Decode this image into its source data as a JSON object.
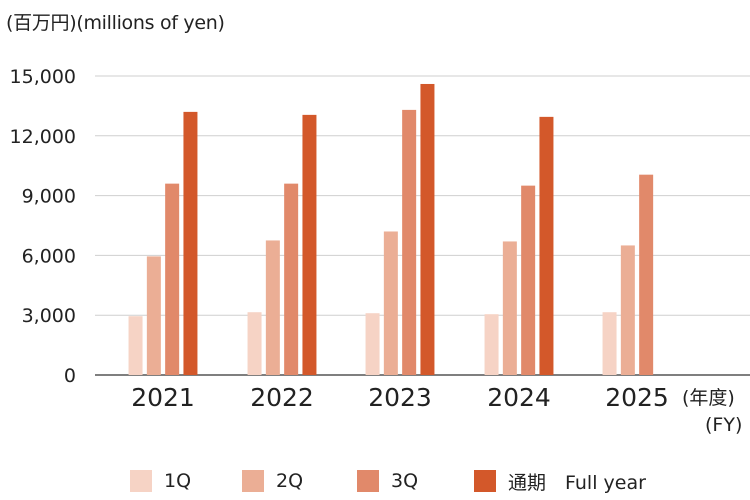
{
  "unit_label": "(百万円)(millions of yen)",
  "fy_label_jp": "(年度)",
  "fy_label_en": "(FY)",
  "legend": [
    {
      "label": "1Q",
      "color": "#f6d3c5"
    },
    {
      "label": "2Q",
      "color": "#ebae95"
    },
    {
      "label": "3Q",
      "color": "#e1896a"
    },
    {
      "label": "通期　Full year",
      "color": "#d3582a"
    }
  ],
  "chart_data": {
    "type": "bar",
    "categories": [
      "2021",
      "2022",
      "2023",
      "2024",
      "2025"
    ],
    "series": [
      {
        "name": "1Q",
        "values": [
          2950,
          3150,
          3100,
          3050,
          3150
        ]
      },
      {
        "name": "2Q",
        "values": [
          5950,
          6750,
          7200,
          6700,
          6500
        ]
      },
      {
        "name": "3Q",
        "values": [
          9600,
          9600,
          13300,
          9500,
          10050
        ]
      },
      {
        "name": "通期　Full year",
        "values": [
          13200,
          13050,
          14600,
          12950,
          null
        ]
      }
    ],
    "yticks": [
      "0",
      "3,000",
      "6,000",
      "9,000",
      "12,000",
      "15,000"
    ],
    "ylim": [
      0,
      15000
    ],
    "grid": true,
    "legend_position": "bottom"
  }
}
